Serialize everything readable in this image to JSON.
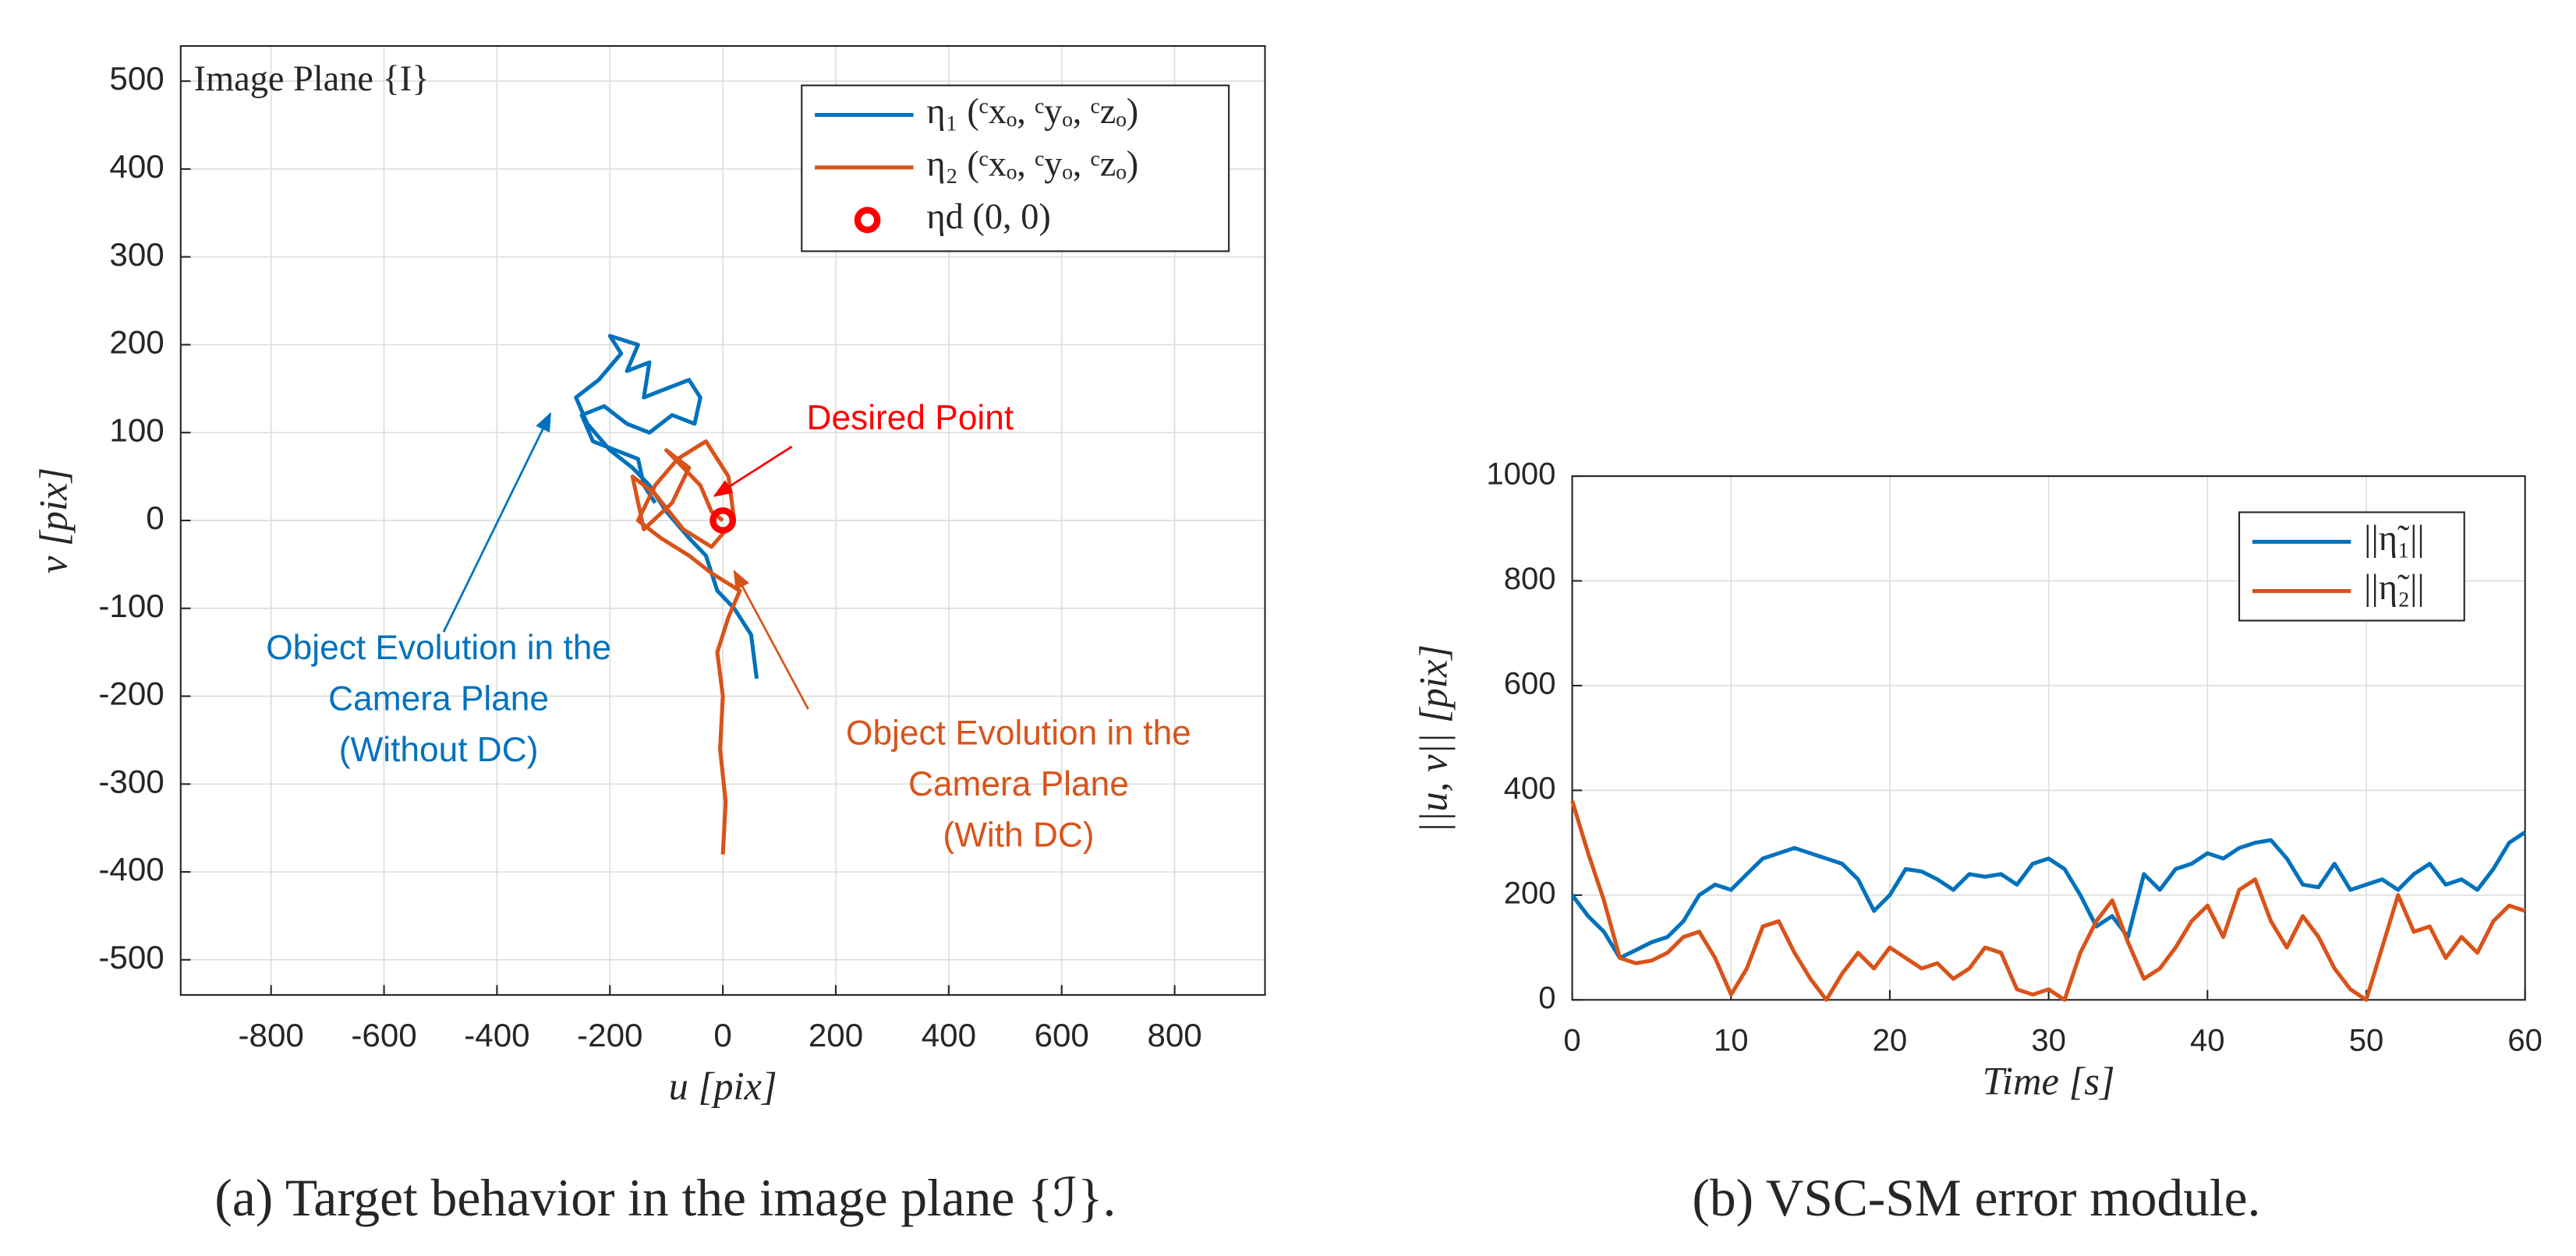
{
  "chart_data": [
    {
      "type": "line",
      "xlabel": "u [pix]",
      "ylabel": "v [pix]",
      "inner_label": "Image Plane {I}",
      "caption": "(a) Target behavior in the image plane {ℐ}.",
      "xlim": [
        -960,
        960
      ],
      "ylim": [
        -540,
        540
      ],
      "xticks": [
        -800,
        -600,
        -400,
        -200,
        0,
        200,
        400,
        600,
        800
      ],
      "yticks": [
        -500,
        -400,
        -300,
        -200,
        -100,
        0,
        100,
        200,
        300,
        400,
        500
      ],
      "grid": true,
      "legend": "upper right",
      "series": [
        {
          "name": "η₁ (ᶜxₒ, ᶜyₒ, ᶜzₒ)",
          "color": "#0072BD",
          "x": [
            60,
            50,
            20,
            -10,
            -30,
            -60,
            -100,
            -130,
            -160,
            -200,
            -240,
            -260,
            -220,
            -180,
            -200,
            -150,
            -170,
            -130,
            -140,
            -100,
            -60,
            -40,
            -50,
            -90,
            -130,
            -170,
            -210,
            -250,
            -230,
            -190,
            -150,
            -140,
            -120
          ],
          "values": [
            -180,
            -130,
            -100,
            -80,
            -40,
            -20,
            10,
            40,
            60,
            80,
            110,
            140,
            160,
            190,
            210,
            200,
            170,
            180,
            140,
            150,
            160,
            140,
            110,
            120,
            100,
            110,
            130,
            120,
            90,
            80,
            70,
            40,
            20
          ]
        },
        {
          "name": "η₂ (ᶜxₒ, ᶜyₒ, ᶜzₒ)",
          "color": "#D95319",
          "x": [
            0,
            5,
            -5,
            0,
            -10,
            10,
            30,
            -20,
            -60,
            -110,
            -150,
            -120,
            -80,
            -30,
            10,
            20,
            -20,
            -70,
            -120,
            -160,
            -140,
            -90,
            -60,
            -100,
            -40,
            -20,
            0
          ],
          "values": [
            -380,
            -320,
            -260,
            -200,
            -150,
            -110,
            -80,
            -60,
            -40,
            -20,
            0,
            40,
            70,
            90,
            50,
            0,
            -30,
            -10,
            30,
            50,
            -10,
            20,
            60,
            80,
            40,
            10,
            0
          ]
        },
        {
          "name": "ηd (0, 0)",
          "color": "#FF0000",
          "style": "marker",
          "x": [
            0
          ],
          "values": [
            0
          ]
        }
      ],
      "annotations": [
        {
          "lines": [
            "Desired Point"
          ],
          "color": "#FF0000"
        },
        {
          "lines": [
            "Object Evolution in the",
            "Camera Plane",
            "(Without DC)"
          ],
          "color": "#0072BD"
        },
        {
          "lines": [
            "Object Evolution in the",
            "Camera Plane",
            "(With DC)"
          ],
          "color": "#D95319"
        }
      ]
    },
    {
      "type": "line",
      "xlabel": "Time [s]",
      "ylabel": "||u, v|| [pix]",
      "caption": "(b) VSC-SM error module.",
      "xlim": [
        0,
        60
      ],
      "ylim": [
        0,
        1000
      ],
      "xticks": [
        0,
        10,
        20,
        30,
        40,
        50,
        60
      ],
      "yticks": [
        0,
        200,
        400,
        600,
        800,
        1000
      ],
      "grid": true,
      "legend": "upper right",
      "x": [
        0,
        1,
        2,
        3,
        4,
        5,
        6,
        7,
        8,
        9,
        10,
        11,
        12,
        13,
        14,
        15,
        16,
        17,
        18,
        19,
        20,
        21,
        22,
        23,
        24,
        25,
        26,
        27,
        28,
        29,
        30,
        31,
        32,
        33,
        34,
        35,
        36,
        37,
        38,
        39,
        40,
        41,
        42,
        43,
        44,
        45,
        46,
        47,
        48,
        49,
        50,
        51,
        52,
        53,
        54,
        55,
        56,
        57,
        58,
        59,
        60
      ],
      "series": [
        {
          "name": "||η̃₁||",
          "color": "#0072BD",
          "values": [
            200,
            160,
            130,
            80,
            95,
            110,
            120,
            150,
            200,
            220,
            210,
            240,
            270,
            280,
            290,
            280,
            270,
            260,
            230,
            170,
            200,
            250,
            245,
            230,
            210,
            240,
            235,
            240,
            220,
            260,
            270,
            250,
            200,
            140,
            160,
            120,
            240,
            210,
            250,
            260,
            280,
            270,
            290,
            300,
            305,
            270,
            220,
            215,
            260,
            210,
            220,
            230,
            210,
            240,
            260,
            220,
            230,
            210,
            250,
            300,
            320
          ]
        },
        {
          "name": "||η̃₂||",
          "color": "#D95319",
          "values": [
            380,
            280,
            190,
            80,
            70,
            75,
            90,
            120,
            130,
            80,
            10,
            60,
            140,
            150,
            90,
            40,
            0,
            50,
            90,
            60,
            100,
            80,
            60,
            70,
            40,
            60,
            100,
            90,
            20,
            10,
            20,
            0,
            90,
            150,
            190,
            110,
            40,
            60,
            100,
            150,
            180,
            120,
            210,
            230,
            150,
            100,
            160,
            120,
            60,
            20,
            0,
            100,
            200,
            130,
            140,
            80,
            120,
            90,
            150,
            180,
            170
          ]
        }
      ]
    }
  ]
}
